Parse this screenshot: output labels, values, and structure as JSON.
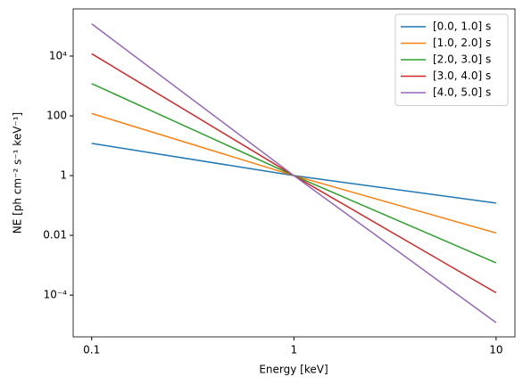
{
  "chart_data": {
    "type": "line",
    "xlabel": "Energy [keV]",
    "ylabel": "NE [ph cm⁻² s⁻¹ keV⁻¹]",
    "x": [
      0.1,
      1,
      10
    ],
    "series": [
      {
        "name": "[0.0, 1.0] s",
        "color": "#1f77b4",
        "values": [
          12,
          1,
          0.12
        ]
      },
      {
        "name": "[1.0, 2.0] s",
        "color": "#ff7f0e",
        "values": [
          120,
          1,
          0.012
        ]
      },
      {
        "name": "[2.0, 3.0] s",
        "color": "#2ca02c",
        "values": [
          1200,
          1,
          0.0012
        ]
      },
      {
        "name": "[3.0, 4.0] s",
        "color": "#d62728",
        "values": [
          12000,
          1,
          0.00012
        ]
      },
      {
        "name": "[4.0, 5.0] s",
        "color": "#9467bd",
        "values": [
          120000,
          1,
          1.2e-05
        ]
      }
    ],
    "xlog": true,
    "ylog": true,
    "xlim": [
      0.081,
      12.4
    ],
    "ylim": [
      4e-06,
      380000
    ],
    "xticks": [
      0.1,
      1,
      10
    ],
    "yticks": [
      {
        "value": 0.0001,
        "label": "10⁻⁴"
      },
      0.01,
      1,
      100,
      {
        "value": 10000,
        "label": "10⁴"
      }
    ],
    "legend": "upper right"
  }
}
